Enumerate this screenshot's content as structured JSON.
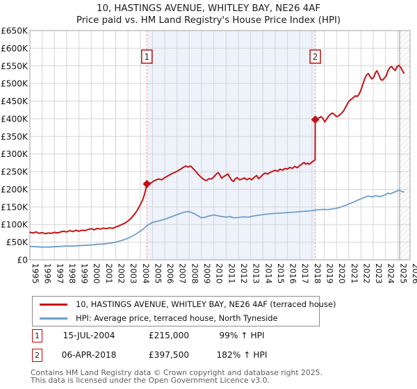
{
  "title": {
    "line1": "10, HASTINGS AVENUE, WHITLEY BAY, NE26 4AF",
    "line2": "Price paid vs. HM Land Registry's House Price Index (HPI)"
  },
  "chart_data": {
    "type": "line",
    "title": "10, HASTINGS AVENUE, WHITLEY BAY, NE26 4AF — Price paid vs. HPI",
    "xlim": [
      1995,
      2026
    ],
    "ylim_k": [
      0,
      650
    ],
    "units": "GBP thousands",
    "grid": true,
    "x_tick_labels": [
      "1995",
      "1996",
      "1997",
      "1998",
      "1999",
      "2000",
      "2001",
      "2002",
      "2003",
      "2004",
      "2005",
      "2006",
      "2007",
      "2008",
      "2009",
      "2010",
      "2011",
      "2012",
      "2013",
      "2014",
      "2015",
      "2016",
      "2017",
      "2018",
      "2019",
      "2020",
      "2021",
      "2022",
      "2023",
      "2024",
      "2025",
      "2026"
    ],
    "y_ticks_k": [
      0,
      50,
      100,
      150,
      200,
      250,
      300,
      350,
      400,
      450,
      500,
      550,
      600,
      650
    ],
    "y_tick_labels": [
      "£0",
      "£50K",
      "£100K",
      "£150K",
      "£200K",
      "£250K",
      "£300K",
      "£350K",
      "£400K",
      "£450K",
      "£500K",
      "£550K",
      "£600K",
      "£650K"
    ],
    "colors": {
      "price_line": "#c41111",
      "hpi_line": "#6d9cca",
      "sale_dash_line": "#f58a8a",
      "marker_box_border": "#b30000",
      "shade_fill": "#eef2fb",
      "grid_line": "#d4d4d4",
      "plot_border": "#a0a0a0",
      "hatch_line": "#c9c9c9",
      "hatch_edge": "#8f8f8f"
    },
    "shaded_span_years": [
      2004.54,
      2018.27
    ],
    "hatch_start_year": 2025.15,
    "sales": [
      {
        "label": "1",
        "date": "15-JUL-2004",
        "year_frac": 2004.54,
        "price_k": 215,
        "price": "£215,000",
        "vs_hpi": "99% ↑ HPI"
      },
      {
        "label": "2",
        "date": "06-APR-2018",
        "year_frac": 2018.27,
        "price_k": 397.5,
        "price": "£397,500",
        "vs_hpi": "182% ↑ HPI"
      }
    ],
    "series": [
      {
        "name": "10, HASTINGS AVENUE, WHITLEY BAY, NE26 4AF (terraced house)",
        "color": "#c41111",
        "width": 2,
        "points": [
          [
            1995.0,
            78
          ],
          [
            1995.25,
            76
          ],
          [
            1995.5,
            79
          ],
          [
            1995.75,
            75
          ],
          [
            1996.0,
            77
          ],
          [
            1996.25,
            74
          ],
          [
            1996.5,
            76
          ],
          [
            1996.75,
            75
          ],
          [
            1997.0,
            78
          ],
          [
            1997.25,
            76
          ],
          [
            1997.5,
            79
          ],
          [
            1997.75,
            81
          ],
          [
            1998.0,
            79
          ],
          [
            1998.25,
            83
          ],
          [
            1998.5,
            80
          ],
          [
            1998.75,
            84
          ],
          [
            1999.0,
            81
          ],
          [
            1999.25,
            84
          ],
          [
            1999.5,
            83
          ],
          [
            1999.75,
            86
          ],
          [
            2000.0,
            88
          ],
          [
            2000.25,
            85
          ],
          [
            2000.5,
            89
          ],
          [
            2000.75,
            87
          ],
          [
            2001.0,
            90
          ],
          [
            2001.25,
            88
          ],
          [
            2001.5,
            91
          ],
          [
            2001.75,
            89
          ],
          [
            2002.0,
            93
          ],
          [
            2002.25,
            96
          ],
          [
            2002.5,
            100
          ],
          [
            2002.75,
            104
          ],
          [
            2003.0,
            110
          ],
          [
            2003.25,
            118
          ],
          [
            2003.5,
            128
          ],
          [
            2003.75,
            140
          ],
          [
            2004.0,
            156
          ],
          [
            2004.2,
            170
          ],
          [
            2004.35,
            186
          ],
          [
            2004.45,
            200
          ],
          [
            2004.54,
            215
          ],
          [
            2004.7,
            219
          ],
          [
            2004.85,
            217
          ],
          [
            2005.0,
            221
          ],
          [
            2005.25,
            226
          ],
          [
            2005.5,
            229
          ],
          [
            2005.75,
            227
          ],
          [
            2006.0,
            233
          ],
          [
            2006.25,
            238
          ],
          [
            2006.5,
            243
          ],
          [
            2006.75,
            247
          ],
          [
            2007.0,
            251
          ],
          [
            2007.25,
            256
          ],
          [
            2007.5,
            262
          ],
          [
            2007.7,
            266
          ],
          [
            2007.9,
            263
          ],
          [
            2008.1,
            266
          ],
          [
            2008.3,
            259
          ],
          [
            2008.5,
            252
          ],
          [
            2008.75,
            241
          ],
          [
            2009.0,
            233
          ],
          [
            2009.2,
            227
          ],
          [
            2009.4,
            225
          ],
          [
            2009.6,
            230
          ],
          [
            2009.8,
            229
          ],
          [
            2010.0,
            235
          ],
          [
            2010.2,
            243
          ],
          [
            2010.35,
            247
          ],
          [
            2010.5,
            240
          ],
          [
            2010.65,
            231
          ],
          [
            2010.8,
            236
          ],
          [
            2011.0,
            240
          ],
          [
            2011.15,
            243
          ],
          [
            2011.3,
            234
          ],
          [
            2011.45,
            226
          ],
          [
            2011.6,
            222
          ],
          [
            2011.75,
            230
          ],
          [
            2011.9,
            233
          ],
          [
            2012.1,
            227
          ],
          [
            2012.3,
            229
          ],
          [
            2012.5,
            232
          ],
          [
            2012.7,
            227
          ],
          [
            2012.9,
            231
          ],
          [
            2013.1,
            227
          ],
          [
            2013.3,
            234
          ],
          [
            2013.5,
            239
          ],
          [
            2013.65,
            230
          ],
          [
            2013.8,
            234
          ],
          [
            2014.0,
            242
          ],
          [
            2014.2,
            246
          ],
          [
            2014.4,
            243
          ],
          [
            2014.6,
            248
          ],
          [
            2014.8,
            251
          ],
          [
            2015.0,
            254
          ],
          [
            2015.2,
            251
          ],
          [
            2015.4,
            257
          ],
          [
            2015.6,
            254
          ],
          [
            2015.8,
            259
          ],
          [
            2016.0,
            257
          ],
          [
            2016.2,
            262
          ],
          [
            2016.4,
            259
          ],
          [
            2016.6,
            265
          ],
          [
            2016.8,
            261
          ],
          [
            2017.0,
            267
          ],
          [
            2017.2,
            272
          ],
          [
            2017.35,
            276
          ],
          [
            2017.5,
            271
          ],
          [
            2017.65,
            274
          ],
          [
            2017.8,
            271
          ],
          [
            2018.0,
            277
          ],
          [
            2018.15,
            281
          ],
          [
            2018.26,
            283
          ],
          [
            2018.27,
            397.5
          ],
          [
            2018.45,
            400
          ],
          [
            2018.6,
            403
          ],
          [
            2018.75,
            406
          ],
          [
            2018.9,
            400
          ],
          [
            2019.05,
            391
          ],
          [
            2019.2,
            399
          ],
          [
            2019.35,
            407
          ],
          [
            2019.5,
            412
          ],
          [
            2019.65,
            416
          ],
          [
            2019.8,
            413
          ],
          [
            2020.0,
            406
          ],
          [
            2020.2,
            409
          ],
          [
            2020.4,
            415
          ],
          [
            2020.6,
            423
          ],
          [
            2020.8,
            436
          ],
          [
            2021.0,
            449
          ],
          [
            2021.2,
            455
          ],
          [
            2021.4,
            461
          ],
          [
            2021.55,
            465
          ],
          [
            2021.7,
            463
          ],
          [
            2021.85,
            470
          ],
          [
            2022.0,
            482
          ],
          [
            2022.15,
            498
          ],
          [
            2022.3,
            513
          ],
          [
            2022.45,
            524
          ],
          [
            2022.6,
            528
          ],
          [
            2022.75,
            519
          ],
          [
            2022.9,
            513
          ],
          [
            2023.05,
            518
          ],
          [
            2023.2,
            532
          ],
          [
            2023.3,
            536
          ],
          [
            2023.45,
            525
          ],
          [
            2023.6,
            512
          ],
          [
            2023.75,
            509
          ],
          [
            2023.9,
            515
          ],
          [
            2024.05,
            521
          ],
          [
            2024.2,
            536
          ],
          [
            2024.35,
            545
          ],
          [
            2024.5,
            548
          ],
          [
            2024.65,
            541
          ],
          [
            2024.8,
            537
          ],
          [
            2024.95,
            549
          ],
          [
            2025.1,
            551
          ],
          [
            2025.25,
            545
          ],
          [
            2025.4,
            535
          ],
          [
            2025.5,
            529
          ]
        ]
      },
      {
        "name": "HPI: Average price, terraced house, North Tyneside",
        "color": "#6d9cca",
        "width": 1.8,
        "points": [
          [
            1995.0,
            38
          ],
          [
            1995.5,
            37
          ],
          [
            1996.0,
            36
          ],
          [
            1996.5,
            36
          ],
          [
            1997.0,
            37
          ],
          [
            1997.5,
            38
          ],
          [
            1998.0,
            39
          ],
          [
            1998.5,
            39
          ],
          [
            1999.0,
            40
          ],
          [
            1999.5,
            41
          ],
          [
            2000.0,
            42
          ],
          [
            2000.5,
            44
          ],
          [
            2001.0,
            45
          ],
          [
            2001.5,
            47
          ],
          [
            2002.0,
            50
          ],
          [
            2002.5,
            55
          ],
          [
            2003.0,
            61
          ],
          [
            2003.5,
            70
          ],
          [
            2004.0,
            81
          ],
          [
            2004.3,
            89
          ],
          [
            2004.6,
            98
          ],
          [
            2005.0,
            106
          ],
          [
            2005.3,
            109
          ],
          [
            2005.6,
            111
          ],
          [
            2006.0,
            115
          ],
          [
            2006.3,
            119
          ],
          [
            2006.6,
            123
          ],
          [
            2007.0,
            128
          ],
          [
            2007.3,
            132
          ],
          [
            2007.6,
            135
          ],
          [
            2007.9,
            137
          ],
          [
            2008.2,
            134
          ],
          [
            2008.5,
            129
          ],
          [
            2008.8,
            123
          ],
          [
            2009.0,
            119
          ],
          [
            2009.3,
            121
          ],
          [
            2009.6,
            124
          ],
          [
            2010.0,
            127
          ],
          [
            2010.3,
            125
          ],
          [
            2010.6,
            123
          ],
          [
            2011.0,
            121
          ],
          [
            2011.3,
            123
          ],
          [
            2011.6,
            119
          ],
          [
            2012.0,
            120
          ],
          [
            2012.4,
            122
          ],
          [
            2012.8,
            121
          ],
          [
            2013.2,
            124
          ],
          [
            2013.6,
            126
          ],
          [
            2014.0,
            128
          ],
          [
            2014.4,
            130
          ],
          [
            2014.8,
            131
          ],
          [
            2015.2,
            132
          ],
          [
            2015.6,
            133
          ],
          [
            2016.0,
            134
          ],
          [
            2016.4,
            135
          ],
          [
            2016.8,
            136
          ],
          [
            2017.2,
            137
          ],
          [
            2017.6,
            138
          ],
          [
            2018.0,
            139
          ],
          [
            2018.3,
            141
          ],
          [
            2018.6,
            142
          ],
          [
            2019.0,
            143
          ],
          [
            2019.3,
            142
          ],
          [
            2019.6,
            144
          ],
          [
            2020.0,
            146
          ],
          [
            2020.4,
            150
          ],
          [
            2020.8,
            155
          ],
          [
            2021.2,
            161
          ],
          [
            2021.6,
            167
          ],
          [
            2022.0,
            173
          ],
          [
            2022.3,
            177
          ],
          [
            2022.6,
            181
          ],
          [
            2022.9,
            178
          ],
          [
            2023.2,
            182
          ],
          [
            2023.5,
            179
          ],
          [
            2023.8,
            182
          ],
          [
            2024.0,
            185
          ],
          [
            2024.2,
            189
          ],
          [
            2024.4,
            187
          ],
          [
            2024.6,
            190
          ],
          [
            2024.8,
            193
          ],
          [
            2025.0,
            196
          ],
          [
            2025.15,
            197
          ],
          [
            2025.3,
            194
          ],
          [
            2025.5,
            192
          ]
        ]
      }
    ],
    "legend_position": "bottom"
  },
  "legend": {
    "items": [
      {
        "label": "10, HASTINGS AVENUE, WHITLEY BAY, NE26 4AF (terraced house)",
        "color": "#c41111"
      },
      {
        "label": "HPI: Average price, terraced house, North Tyneside",
        "color": "#6d9cca"
      }
    ]
  },
  "transactions": [
    {
      "num": "1",
      "date": "15-JUL-2004",
      "price": "£215,000",
      "hpi": "99% ↑ HPI"
    },
    {
      "num": "2",
      "date": "06-APR-2018",
      "price": "£397,500",
      "hpi": "182% ↑ HPI"
    }
  ],
  "footer": {
    "line1": "Contains HM Land Registry data © Crown copyright and database right 2025.",
    "line2": "This data is licensed under the Open Government Licence v3.0."
  }
}
